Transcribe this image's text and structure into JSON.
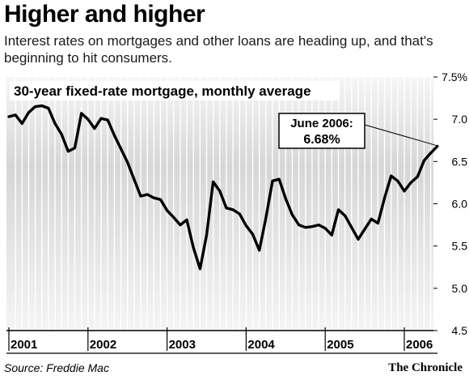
{
  "header": {
    "title": "Higher and higher",
    "subtitle": "Interest rates on mortgages and other loans are heading up, and that's beginning to hit consumers."
  },
  "footer": {
    "source": "Source: Freddie Mac",
    "credit": "The Chronicle"
  },
  "chart_data": {
    "type": "line",
    "title": "30-year fixed-rate mortgage, monthly average",
    "xlabel": "",
    "ylabel": "",
    "ylim": [
      4.5,
      7.5
    ],
    "xlim": [
      2001.0,
      2006.5
    ],
    "grid": "vertical monthly lines",
    "x_tick_labels": [
      {
        "label": "2001",
        "value": 2001
      },
      {
        "label": "2002",
        "value": 2002
      },
      {
        "label": "2003",
        "value": 2003
      },
      {
        "label": "2004",
        "value": 2004
      },
      {
        "label": "2005",
        "value": 2005
      },
      {
        "label": "2006",
        "value": 2006
      }
    ],
    "y_ticks": [
      {
        "label": "7.5%",
        "value": 7.5
      },
      {
        "label": "7.0",
        "value": 7.0
      },
      {
        "label": "6.5",
        "value": 6.5
      },
      {
        "label": "6.0",
        "value": 6.0
      },
      {
        "label": "5.5",
        "value": 5.5
      },
      {
        "label": "5.0",
        "value": 5.0
      },
      {
        "label": "4.5",
        "value": 4.5
      }
    ],
    "series": [
      {
        "name": "",
        "color": "#000000",
        "x": [
          "2001-01",
          "2001-02",
          "2001-03",
          "2001-04",
          "2001-05",
          "2001-06",
          "2001-07",
          "2001-08",
          "2001-09",
          "2001-10",
          "2001-11",
          "2001-12",
          "2002-01",
          "2002-02",
          "2002-03",
          "2002-04",
          "2002-05",
          "2002-06",
          "2002-07",
          "2002-08",
          "2002-09",
          "2002-10",
          "2002-11",
          "2002-12",
          "2003-01",
          "2003-02",
          "2003-03",
          "2003-04",
          "2003-05",
          "2003-06",
          "2003-07",
          "2003-08",
          "2003-09",
          "2003-10",
          "2003-11",
          "2003-12",
          "2004-01",
          "2004-02",
          "2004-03",
          "2004-04",
          "2004-05",
          "2004-06",
          "2004-07",
          "2004-08",
          "2004-09",
          "2004-10",
          "2004-11",
          "2004-12",
          "2005-01",
          "2005-02",
          "2005-03",
          "2005-04",
          "2005-05",
          "2005-06",
          "2005-07",
          "2005-08",
          "2005-09",
          "2005-10",
          "2005-11",
          "2005-12",
          "2006-01",
          "2006-02",
          "2006-03",
          "2006-04",
          "2006-05",
          "2006-06"
        ],
        "values": [
          7.03,
          7.05,
          6.95,
          7.08,
          7.15,
          7.16,
          7.13,
          6.95,
          6.82,
          6.62,
          6.66,
          7.07,
          7.0,
          6.89,
          7.01,
          6.99,
          6.81,
          6.65,
          6.49,
          6.29,
          6.09,
          6.11,
          6.07,
          6.05,
          5.92,
          5.84,
          5.75,
          5.81,
          5.48,
          5.23,
          5.63,
          6.26,
          6.15,
          5.95,
          5.93,
          5.88,
          5.74,
          5.64,
          5.45,
          5.83,
          6.27,
          6.29,
          6.06,
          5.87,
          5.75,
          5.72,
          5.73,
          5.75,
          5.71,
          5.63,
          5.93,
          5.86,
          5.72,
          5.58,
          5.7,
          5.82,
          5.77,
          6.07,
          6.33,
          6.27,
          6.15,
          6.25,
          6.32,
          6.51,
          6.6,
          6.68
        ]
      }
    ],
    "annotations": [
      {
        "text_line1": "June 2006:",
        "text_line2": "6.68%",
        "x": "2006-06",
        "y": 6.68
      }
    ]
  }
}
